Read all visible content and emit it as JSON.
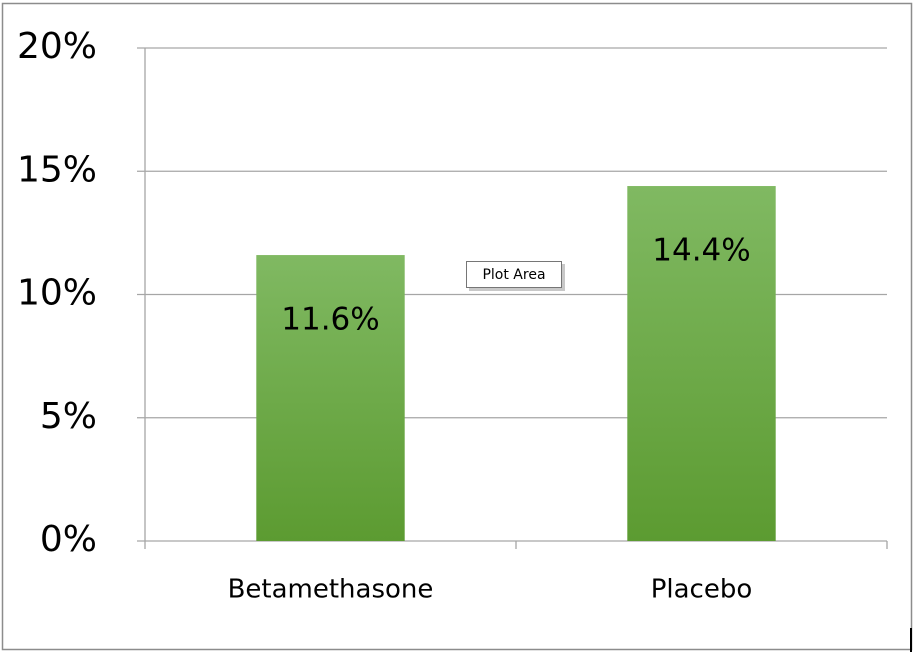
{
  "chart_data": {
    "type": "bar",
    "categories": [
      "Betamethasone",
      "Placebo"
    ],
    "values": [
      11.6,
      14.4
    ],
    "value_labels": [
      "11.6%",
      "14.4%"
    ],
    "color": "#6aa843",
    "ylim": [
      0,
      20
    ],
    "yticks": [
      {
        "value": 0,
        "label": "0%"
      },
      {
        "value": 5,
        "label": "5%"
      },
      {
        "value": 10,
        "label": "10%"
      },
      {
        "value": 15,
        "label": "15%"
      },
      {
        "value": 20,
        "label": "20%"
      }
    ],
    "grid": true,
    "tooltip": "Plot Area"
  }
}
